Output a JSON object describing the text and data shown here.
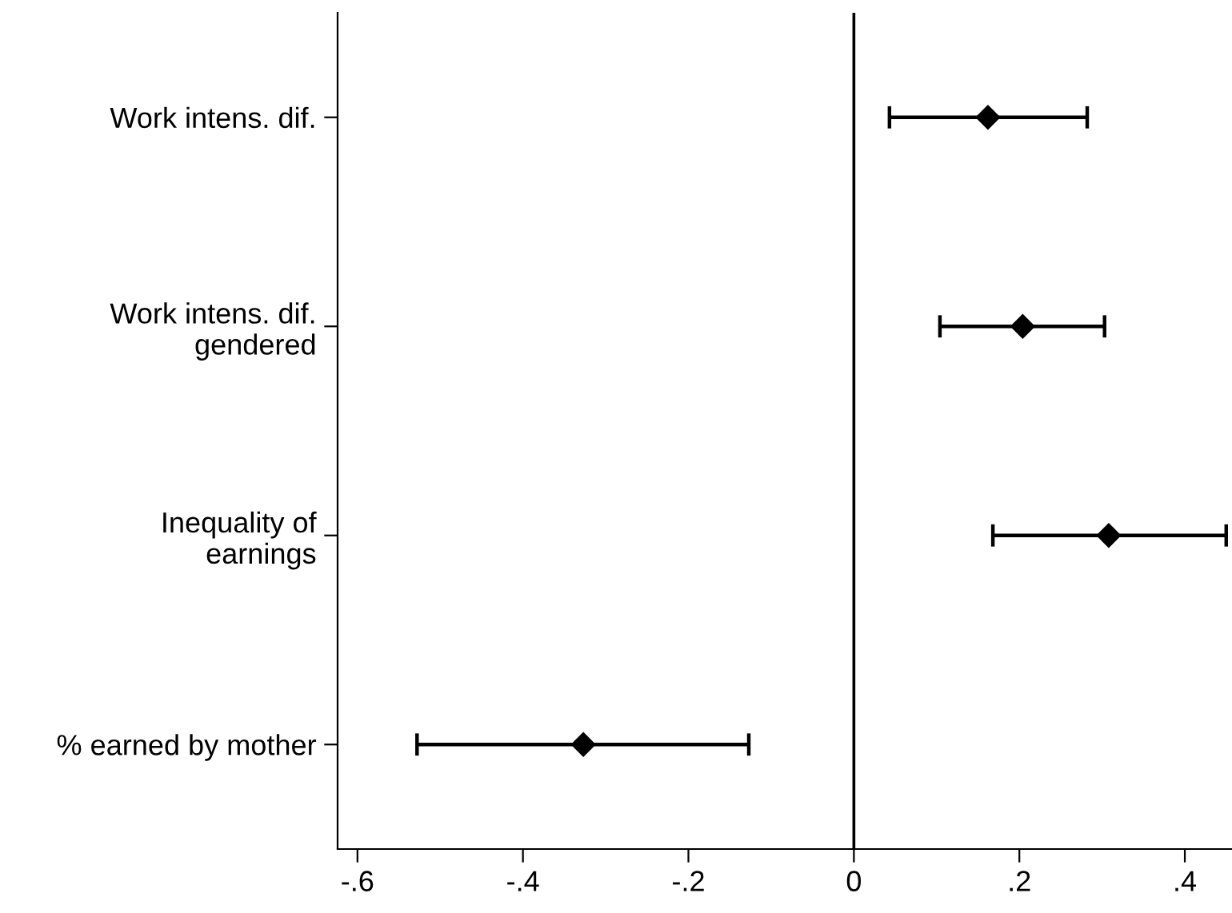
{
  "chart_data": {
    "type": "scatter",
    "orientation": "horizontal",
    "categories": [
      "Work intens. dif.",
      "Work intens. dif.\ngendered",
      "Inequality of\nearnings",
      "% earned by mother"
    ],
    "series": [
      {
        "color": "#000000",
        "values": [
          0.162,
          0.204,
          0.308,
          -0.327
        ],
        "errors": [
          [
            0.043,
            0.282
          ],
          [
            0.104,
            0.303
          ],
          [
            0.168,
            0.45
          ],
          [
            -0.528,
            -0.127
          ]
        ]
      }
    ],
    "xlim": [
      -0.624,
      0.457
    ],
    "xticks": [
      {
        "value": -0.6,
        "label": "-.6"
      },
      {
        "value": -0.4,
        "label": "-.4"
      },
      {
        "value": -0.2,
        "label": "-.2"
      },
      0,
      {
        "value": 0.2,
        "label": ".2"
      },
      {
        "value": 0.4,
        "label": ".4"
      }
    ],
    "ref_lines": [
      {
        "axis": "x",
        "value": 0,
        "color": "#000000"
      }
    ],
    "marker": "diamond",
    "grid": false,
    "legend": false
  }
}
